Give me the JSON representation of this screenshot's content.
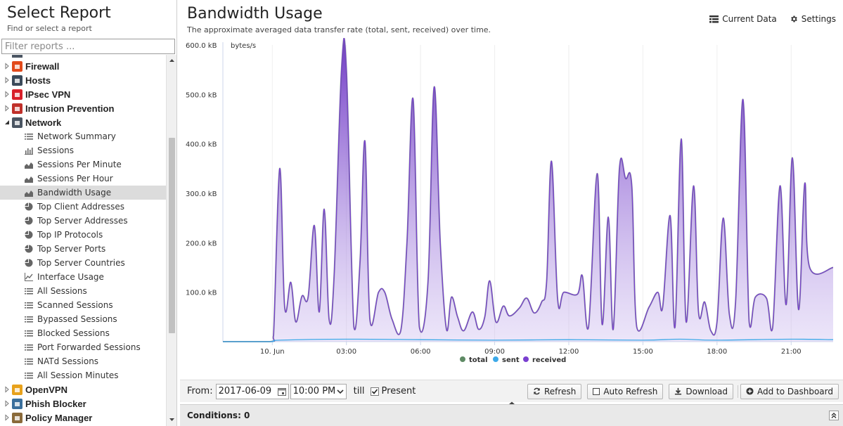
{
  "sidebar": {
    "title": "Select Report",
    "subtitle": "Find or select a report",
    "filter_placeholder": "Filter reports ...",
    "top_items": [
      {
        "label": "Firewall",
        "icon": "firewall-icon",
        "color": "#e24a1b",
        "expanded": false
      },
      {
        "label": "Hosts",
        "icon": "hosts-icon",
        "color": "#3b4a5a",
        "expanded": false
      },
      {
        "label": "IPsec VPN",
        "icon": "lock-icon",
        "color": "#d8202a",
        "expanded": false
      },
      {
        "label": "Intrusion Prevention",
        "icon": "ips-icon",
        "color": "#c0302a",
        "expanded": false
      },
      {
        "label": "Network",
        "icon": "network-icon",
        "color": "#4a5562",
        "expanded": true
      }
    ],
    "network_children": [
      {
        "label": "Network Summary",
        "icon": "list-icon"
      },
      {
        "label": "Sessions",
        "icon": "bar-chart-icon"
      },
      {
        "label": "Sessions Per Minute",
        "icon": "area-chart-icon"
      },
      {
        "label": "Sessions Per Hour",
        "icon": "area-chart-icon"
      },
      {
        "label": "Bandwidth Usage",
        "icon": "area-chart-icon",
        "selected": true
      },
      {
        "label": "Top Client Addresses",
        "icon": "pie-chart-icon"
      },
      {
        "label": "Top Server Addresses",
        "icon": "pie-chart-icon"
      },
      {
        "label": "Top IP Protocols",
        "icon": "pie-chart-icon"
      },
      {
        "label": "Top Server Ports",
        "icon": "pie-chart-icon"
      },
      {
        "label": "Top Server Countries",
        "icon": "pie-chart-icon"
      },
      {
        "label": "Interface Usage",
        "icon": "line-chart-icon"
      },
      {
        "label": "All Sessions",
        "icon": "list-icon"
      },
      {
        "label": "Scanned Sessions",
        "icon": "list-icon"
      },
      {
        "label": "Bypassed Sessions",
        "icon": "list-icon"
      },
      {
        "label": "Blocked Sessions",
        "icon": "list-icon"
      },
      {
        "label": "Port Forwarded Sessions",
        "icon": "list-icon"
      },
      {
        "label": "NATd Sessions",
        "icon": "list-icon"
      },
      {
        "label": "All Session Minutes",
        "icon": "list-icon"
      }
    ],
    "bottom_items": [
      {
        "label": "OpenVPN",
        "icon": "openvpn-icon",
        "color": "#e8a21c"
      },
      {
        "label": "Phish Blocker",
        "icon": "phish-icon",
        "color": "#3a6f9c"
      },
      {
        "label": "Policy Manager",
        "icon": "policy-icon",
        "color": "#8a6a3a"
      }
    ]
  },
  "report": {
    "title": "Bandwidth Usage",
    "description": "The approximate averaged data transfer rate (total, sent, received) over time.",
    "current_data_label": "Current Data",
    "settings_label": "Settings"
  },
  "chart_data": {
    "type": "area",
    "ylabel": "bytes/s",
    "ylim": [
      0,
      600
    ],
    "y_unit": "kB",
    "y_ticks": [
      "600.0 kB",
      "500.0 kB",
      "400.0 kB",
      "300.0 kB",
      "200.0 kB",
      "100.0 kB"
    ],
    "y_tick_values": [
      600,
      500,
      400,
      300,
      200,
      100
    ],
    "x_ticks": [
      "10. Jun",
      "03:00",
      "06:00",
      "09:00",
      "12:00",
      "15:00",
      "18:00",
      "21:00"
    ],
    "x_tick_hours": [
      0,
      3,
      6,
      9,
      12,
      15,
      18,
      21
    ],
    "xlim_hours": [
      -2,
      22.7
    ],
    "legend_placement": "bottom-center",
    "series": [
      {
        "name": "total",
        "color": "#5e8a64"
      },
      {
        "name": "sent",
        "color": "#3da9e8"
      },
      {
        "name": "received",
        "color": "#7a3fd0"
      }
    ],
    "received_points": [
      [
        -2.0,
        0
      ],
      [
        -0.1,
        0
      ],
      [
        0.05,
        12
      ],
      [
        0.3,
        350
      ],
      [
        0.5,
        70
      ],
      [
        0.75,
        120
      ],
      [
        0.95,
        40
      ],
      [
        1.2,
        92
      ],
      [
        1.45,
        90
      ],
      [
        1.7,
        235
      ],
      [
        1.9,
        60
      ],
      [
        2.1,
        268
      ],
      [
        2.3,
        45
      ],
      [
        2.5,
        130
      ],
      [
        2.8,
        550
      ],
      [
        3.0,
        550
      ],
      [
        3.3,
        30
      ],
      [
        3.55,
        160
      ],
      [
        3.75,
        405
      ],
      [
        3.95,
        45
      ],
      [
        4.3,
        100
      ],
      [
        4.55,
        100
      ],
      [
        4.85,
        45
      ],
      [
        5.2,
        22
      ],
      [
        5.45,
        200
      ],
      [
        5.7,
        490
      ],
      [
        5.95,
        30
      ],
      [
        6.3,
        120
      ],
      [
        6.55,
        515
      ],
      [
        6.8,
        200
      ],
      [
        7.05,
        25
      ],
      [
        7.25,
        90
      ],
      [
        7.5,
        50
      ],
      [
        7.75,
        22
      ],
      [
        8.1,
        60
      ],
      [
        8.35,
        25
      ],
      [
        8.6,
        50
      ],
      [
        8.8,
        123
      ],
      [
        9.05,
        40
      ],
      [
        9.35,
        72
      ],
      [
        9.6,
        52
      ],
      [
        10.0,
        68
      ],
      [
        10.3,
        88
      ],
      [
        10.6,
        58
      ],
      [
        10.9,
        80
      ],
      [
        11.1,
        120
      ],
      [
        11.3,
        365
      ],
      [
        11.55,
        85
      ],
      [
        11.8,
        100
      ],
      [
        12.35,
        96
      ],
      [
        12.55,
        133
      ],
      [
        12.8,
        30
      ],
      [
        13.15,
        340
      ],
      [
        13.35,
        35
      ],
      [
        13.6,
        252
      ],
      [
        13.8,
        25
      ],
      [
        14.05,
        350
      ],
      [
        14.3,
        330
      ],
      [
        14.55,
        315
      ],
      [
        14.75,
        30
      ],
      [
        15.25,
        70
      ],
      [
        15.6,
        100
      ],
      [
        15.8,
        70
      ],
      [
        16.1,
        255
      ],
      [
        16.3,
        30
      ],
      [
        16.55,
        410
      ],
      [
        16.75,
        40
      ],
      [
        17.05,
        315
      ],
      [
        17.25,
        60
      ],
      [
        17.5,
        80
      ],
      [
        17.75,
        22
      ],
      [
        18.0,
        40
      ],
      [
        18.25,
        250
      ],
      [
        18.5,
        55
      ],
      [
        18.75,
        80
      ],
      [
        19.05,
        490
      ],
      [
        19.3,
        40
      ],
      [
        19.55,
        90
      ],
      [
        20.0,
        88
      ],
      [
        20.25,
        28
      ],
      [
        20.55,
        315
      ],
      [
        20.8,
        75
      ],
      [
        21.05,
        372
      ],
      [
        21.3,
        65
      ],
      [
        21.55,
        320
      ],
      [
        21.75,
        150
      ],
      [
        22.7,
        150
      ]
    ],
    "sent_points": [
      [
        -2.0,
        0
      ],
      [
        -0.1,
        0
      ],
      [
        0.3,
        3
      ],
      [
        3.0,
        5
      ],
      [
        6.0,
        4
      ],
      [
        9.0,
        3
      ],
      [
        12.0,
        4
      ],
      [
        15.0,
        3
      ],
      [
        16.5,
        5
      ],
      [
        18.0,
        3
      ],
      [
        21.0,
        5
      ],
      [
        22.7,
        4
      ]
    ]
  },
  "toolbar": {
    "from_label": "From:",
    "from_date": "2017-06-09",
    "from_time": "10:00 PM",
    "till_label": "till",
    "present_label": "Present",
    "present_checked": true,
    "refresh_label": "Refresh",
    "auto_refresh_label": "Auto Refresh",
    "download_label": "Download",
    "add_dashboard_label": "Add to Dashboard"
  },
  "conditions": {
    "label": "Conditions: 0"
  }
}
